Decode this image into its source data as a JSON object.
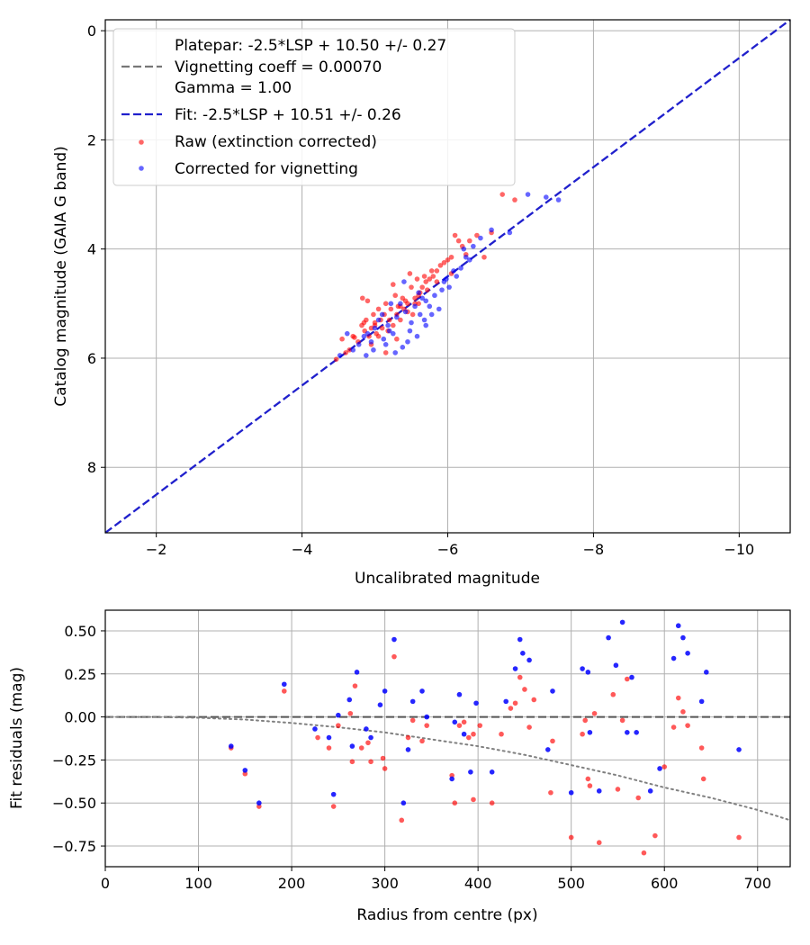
{
  "colors": {
    "raw": "#ff0000",
    "corrected": "#0000ff",
    "fit": "#2020cc",
    "platepar": "#777777",
    "grid": "#b0b0b0",
    "zero_line": "#555555",
    "vignetting_curve": "#808080"
  },
  "chart_data": [
    {
      "type": "scatter",
      "title": "",
      "xlabel": "Uncalibrated magnitude",
      "ylabel": "Catalog magnitude (GAIA G band)",
      "xlim": [
        -1.3,
        -10.7
      ],
      "ylim": [
        9.2,
        -0.2
      ],
      "x_inverted": true,
      "y_inverted": true,
      "xticks": [
        -2,
        -4,
        -6,
        -8,
        -10
      ],
      "xtick_labels": [
        "−2",
        "−4",
        "−6",
        "−8",
        "−10"
      ],
      "yticks": [
        0,
        2,
        4,
        6,
        8
      ],
      "ytick_labels": [
        "0",
        "2",
        "4",
        "6",
        "8"
      ],
      "grid": true,
      "legend_placement": "top-left",
      "legend": {
        "platepar_lines": [
          "Platepar: -2.5*LSP + 10.50 +/- 0.27",
          "Vignetting coeff = 0.00070",
          "Gamma = 1.00"
        ],
        "fit": "Fit: -2.5*LSP + 10.51 +/- 0.26",
        "raw": "Raw (extinction corrected)",
        "corrected": "Corrected for vignetting"
      },
      "lines": [
        {
          "name": "Fit: -2.5*LSP + 10.51 +/- 0.26",
          "style": "dashed",
          "x": [
            -1.3,
            -10.7
          ],
          "y": [
            9.2,
            -0.2
          ]
        }
      ],
      "series": [
        {
          "name": "Raw (extinction corrected)",
          "x": [
            -4.47,
            -4.55,
            -4.6,
            -4.65,
            -4.72,
            -4.77,
            -4.82,
            -4.83,
            -4.86,
            -4.88,
            -4.9,
            -4.92,
            -4.95,
            -4.98,
            -5.0,
            -5.02,
            -5.05,
            -5.08,
            -5.1,
            -5.13,
            -5.15,
            -5.18,
            -5.2,
            -5.22,
            -5.25,
            -5.28,
            -5.3,
            -5.32,
            -5.35,
            -5.38,
            -5.4,
            -5.42,
            -5.45,
            -5.48,
            -5.5,
            -5.52,
            -5.55,
            -5.58,
            -5.6,
            -5.62,
            -5.65,
            -5.68,
            -5.7,
            -5.72,
            -5.75,
            -5.78,
            -5.8,
            -5.85,
            -5.9,
            -5.95,
            -6.0,
            -6.05,
            -6.1,
            -6.15,
            -6.2,
            -6.25,
            -6.3,
            -6.4,
            -6.5,
            -6.6,
            -6.75,
            -6.92,
            -5.0,
            -5.3,
            -4.7,
            -5.6,
            -5.35,
            -4.95,
            -5.15,
            -5.45,
            -5.05,
            -5.25,
            -4.85,
            -5.55,
            -5.85,
            -6.05
          ],
          "y": [
            6.02,
            5.65,
            5.9,
            5.85,
            5.62,
            5.7,
            5.4,
            4.9,
            5.5,
            5.3,
            4.95,
            5.6,
            5.45,
            5.2,
            5.35,
            5.55,
            5.1,
            5.3,
            5.45,
            5.2,
            5.0,
            5.5,
            5.3,
            5.1,
            5.4,
            4.85,
            5.2,
            5.05,
            5.3,
            4.9,
            5.1,
            4.95,
            5.0,
            4.45,
            4.7,
            5.2,
            4.9,
            4.55,
            5.0,
            4.8,
            4.7,
            4.5,
            4.6,
            4.75,
            4.55,
            4.4,
            4.5,
            4.4,
            4.3,
            4.25,
            4.2,
            4.15,
            3.75,
            3.85,
            3.95,
            4.1,
            3.85,
            3.75,
            4.15,
            3.7,
            3.0,
            3.1,
            5.4,
            5.65,
            5.6,
            4.85,
            5.05,
            5.75,
            5.9,
            5.15,
            5.6,
            4.65,
            5.35,
            5.0,
            4.6,
            4.45
          ]
        },
        {
          "name": "Corrected for vignetting",
          "x": [
            -4.52,
            -4.62,
            -4.7,
            -4.78,
            -4.85,
            -4.9,
            -4.95,
            -5.0,
            -5.05,
            -5.1,
            -5.12,
            -5.18,
            -5.22,
            -5.25,
            -5.3,
            -5.35,
            -5.38,
            -5.42,
            -5.45,
            -5.5,
            -5.55,
            -5.58,
            -5.62,
            -5.65,
            -5.7,
            -5.75,
            -5.78,
            -5.82,
            -5.88,
            -5.92,
            -5.98,
            -6.02,
            -6.08,
            -6.12,
            -6.18,
            -6.22,
            -6.3,
            -6.35,
            -6.45,
            -6.6,
            -6.85,
            -7.1,
            -7.35,
            -7.52,
            -4.98,
            -5.28,
            -5.48,
            -5.68,
            -5.15,
            -5.4,
            -5.6,
            -4.88,
            -5.2,
            -5.7,
            -5.95,
            -6.25
          ],
          "y": [
            5.95,
            5.55,
            5.85,
            5.75,
            5.6,
            5.55,
            5.7,
            5.45,
            5.3,
            5.2,
            5.65,
            5.4,
            5.0,
            5.55,
            5.25,
            5.0,
            5.8,
            5.15,
            5.7,
            5.35,
            5.05,
            5.6,
            5.2,
            4.9,
            5.4,
            5.05,
            5.2,
            4.85,
            5.1,
            4.75,
            4.55,
            4.7,
            4.4,
            4.5,
            4.35,
            4.0,
            4.2,
            3.95,
            3.8,
            3.65,
            3.7,
            3.0,
            3.05,
            3.1,
            5.85,
            5.9,
            5.5,
            5.3,
            5.75,
            4.6,
            4.8,
            5.95,
            5.5,
            4.95,
            4.6,
            4.15
          ]
        }
      ]
    },
    {
      "type": "scatter",
      "title": "",
      "xlabel": "Radius from centre (px)",
      "ylabel": "Fit residuals (mag)",
      "xlim": [
        0,
        735
      ],
      "ylim": [
        -0.87,
        0.62
      ],
      "xticks": [
        0,
        100,
        200,
        300,
        400,
        500,
        600,
        700
      ],
      "xtick_labels": [
        "0",
        "100",
        "200",
        "300",
        "400",
        "500",
        "600",
        "700"
      ],
      "yticks": [
        -0.75,
        -0.5,
        -0.25,
        0.0,
        0.25,
        0.5
      ],
      "ytick_labels": [
        "−0.75",
        "−0.50",
        "−0.25",
        "0.00",
        "0.25",
        "0.50"
      ],
      "grid": true,
      "reference_line": {
        "y": 0.0,
        "style": "dashed"
      },
      "vignetting_curve": {
        "style": "dotted",
        "x": [
          0,
          50,
          100,
          150,
          200,
          250,
          300,
          350,
          400,
          450,
          500,
          550,
          600,
          650,
          700,
          735
        ],
        "y": [
          0.0,
          0.0,
          -0.005,
          -0.015,
          -0.035,
          -0.06,
          -0.09,
          -0.13,
          -0.17,
          -0.22,
          -0.28,
          -0.34,
          -0.41,
          -0.47,
          -0.54,
          -0.6
        ]
      },
      "series": [
        {
          "name": "Raw (extinction corrected)",
          "x": [
            135,
            150,
            165,
            192,
            228,
            240,
            245,
            250,
            263,
            265,
            268,
            275,
            282,
            285,
            298,
            300,
            310,
            318,
            325,
            330,
            340,
            345,
            372,
            375,
            380,
            385,
            390,
            395,
            395,
            402,
            415,
            425,
            435,
            440,
            445,
            450,
            455,
            460,
            478,
            480,
            500,
            512,
            515,
            518,
            520,
            525,
            530,
            545,
            550,
            555,
            560,
            572,
            578,
            590,
            600,
            610,
            615,
            620,
            625,
            640,
            642,
            680
          ],
          "y": [
            -0.18,
            -0.33,
            -0.52,
            0.15,
            -0.12,
            -0.18,
            -0.52,
            -0.05,
            0.02,
            -0.26,
            0.18,
            -0.18,
            -0.15,
            -0.26,
            -0.24,
            -0.3,
            0.35,
            -0.6,
            -0.12,
            -0.02,
            -0.14,
            -0.05,
            -0.34,
            -0.5,
            -0.05,
            -0.03,
            -0.12,
            -0.48,
            -0.1,
            -0.05,
            -0.5,
            -0.1,
            0.05,
            0.08,
            0.23,
            0.16,
            -0.06,
            0.1,
            -0.44,
            -0.14,
            -0.7,
            -0.1,
            -0.02,
            -0.36,
            -0.4,
            0.02,
            -0.73,
            0.13,
            -0.42,
            -0.02,
            0.22,
            -0.47,
            -0.79,
            -0.69,
            -0.29,
            -0.06,
            0.11,
            0.03,
            -0.05,
            -0.18,
            -0.36,
            -0.7
          ]
        },
        {
          "name": "Corrected for vignetting",
          "x": [
            135,
            150,
            165,
            192,
            225,
            240,
            245,
            250,
            262,
            265,
            270,
            280,
            285,
            295,
            300,
            310,
            320,
            325,
            330,
            340,
            345,
            372,
            375,
            380,
            385,
            392,
            398,
            415,
            430,
            440,
            445,
            448,
            455,
            475,
            480,
            500,
            512,
            518,
            520,
            530,
            540,
            548,
            555,
            560,
            565,
            570,
            585,
            595,
            610,
            615,
            620,
            625,
            640,
            645,
            680
          ],
          "y": [
            -0.17,
            -0.31,
            -0.5,
            0.19,
            -0.07,
            -0.12,
            -0.45,
            0.01,
            0.1,
            -0.17,
            0.26,
            -0.07,
            -0.12,
            0.07,
            0.15,
            0.45,
            -0.5,
            -0.19,
            0.09,
            0.15,
            0.0,
            -0.36,
            -0.03,
            0.13,
            -0.1,
            -0.32,
            0.08,
            -0.32,
            0.09,
            0.28,
            0.45,
            0.37,
            0.33,
            -0.19,
            0.15,
            -0.44,
            0.28,
            0.26,
            -0.09,
            -0.43,
            0.46,
            0.3,
            0.55,
            -0.09,
            0.23,
            -0.09,
            -0.43,
            -0.3,
            0.34,
            0.53,
            0.46,
            0.37,
            0.09,
            0.26,
            -0.19
          ]
        }
      ]
    }
  ]
}
